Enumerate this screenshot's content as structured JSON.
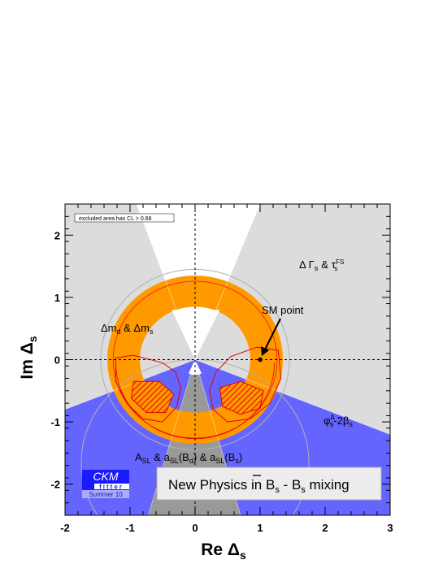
{
  "chart_data": {
    "type": "contour",
    "xlabel": "Re Δ",
    "xlabel_sub": "s",
    "ylabel": "Im Δ",
    "ylabel_sub": "s",
    "xlim": [
      -2,
      3
    ],
    "ylim": [
      -2.5,
      2.5
    ],
    "xticks": [
      "-2",
      "-1",
      "0",
      "1",
      "2",
      "3"
    ],
    "xtick_values": [
      -2,
      -1,
      0,
      1,
      2,
      3
    ],
    "yticks": [
      "2",
      "1",
      "0",
      "-1",
      "-2"
    ],
    "ytick_values": [
      2,
      1,
      0,
      -1,
      -2
    ],
    "annotations": {
      "excluded_note": "excluded area has CL > 0.68",
      "dgamma": {
        "main": "Δ Γ",
        "s": "s",
        "amp": "&",
        "tau": "τ",
        "fs": "FS",
        "s2": "s"
      },
      "dm": {
        "a": "Δm",
        "b": "d",
        "c": " & Δm",
        "d": "s"
      },
      "sm_point": "SM point",
      "phi": {
        "a": "φ",
        "b": "Δ",
        "c": "s",
        "d": "-2β",
        "e": "s"
      },
      "asl": {
        "a": "A",
        "b": "SL",
        "c": " & a",
        "d": "SL",
        "e": "(B",
        "f": "d",
        "g": ") & a",
        "h": "SL",
        "i": "(B",
        "j": "s",
        "k": ")"
      },
      "banner": {
        "a": "New Physics in B",
        "b": "s",
        "c": " - ",
        "d": "B",
        "e": "s",
        "f": " mixing"
      }
    },
    "sm_point": {
      "x": 1.0,
      "y": 0.0
    },
    "dm_ring": {
      "center": [
        0,
        0
      ],
      "r_inner": 0.85,
      "r_outer": 1.35
    },
    "logo": {
      "line1": "CKM",
      "line2": "fitter",
      "line3": "Summer 10"
    },
    "colors": {
      "grey_light": "#dcdcdc",
      "grey_dark": "#999999",
      "blue": "#6464ff",
      "orange": "#ff9900",
      "red": "#e60000",
      "white": "#ffffff"
    }
  }
}
